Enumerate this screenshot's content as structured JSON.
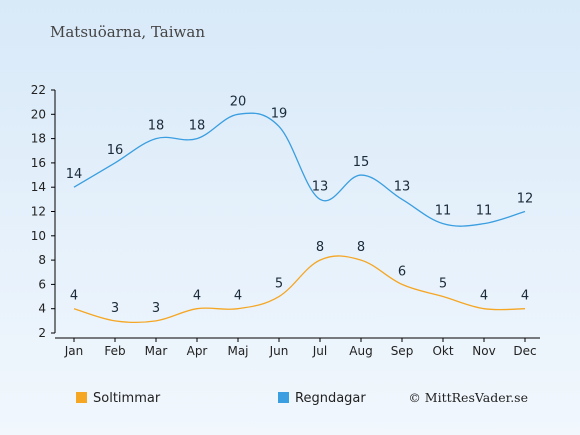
{
  "chart_data": {
    "type": "line",
    "title": "Matsuöarna, Taiwan",
    "categories": [
      "Jan",
      "Feb",
      "Mar",
      "Apr",
      "Maj",
      "Jun",
      "Jul",
      "Aug",
      "Sep",
      "Okt",
      "Nov",
      "Dec"
    ],
    "series": [
      {
        "name": "Soltimmar",
        "color": "#f5a623",
        "values": [
          4,
          3,
          3,
          4,
          4,
          5,
          8,
          8,
          6,
          5,
          4,
          4
        ]
      },
      {
        "name": "Regndagar",
        "color": "#3a9ee0",
        "values": [
          14,
          16,
          18,
          18,
          20,
          19,
          13,
          15,
          13,
          11,
          11,
          12
        ]
      }
    ],
    "ylim": [
      2,
      22
    ],
    "yticks": [
      2,
      4,
      6,
      8,
      10,
      12,
      14,
      16,
      18,
      20,
      22
    ],
    "grid": false,
    "legend_position": "bottom-left",
    "credit": "© MittResVader.se"
  }
}
